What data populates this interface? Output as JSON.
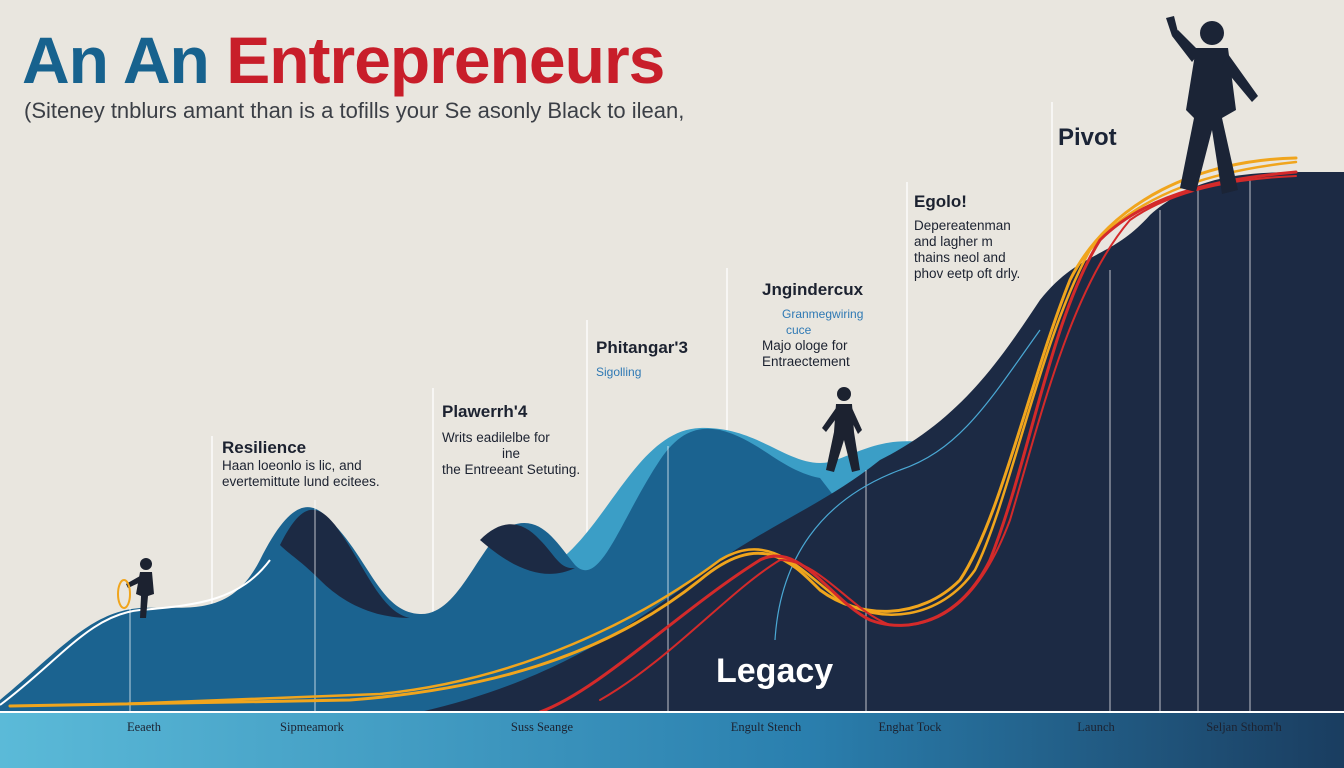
{
  "title": {
    "part1": "An An",
    "part2": "Entrepreneurs"
  },
  "subtitle": "(Siteney tnblurs amant than is a tofills your Se asonly Black to ilean,",
  "annotations": {
    "resilience": {
      "heading": "Resilience",
      "lines": [
        "Haan loeonlo is lic, and",
        "evertemittute lund ecitees."
      ]
    },
    "plawerrh": {
      "heading": "Plawerrh'4",
      "lines": [
        "Writs eadilelbe for",
        "the Entreeant Setuting."
      ],
      "blue": "ine"
    },
    "phitangar": {
      "heading": "Phitangar'3",
      "blue": "Sigolling"
    },
    "jngindercux": {
      "heading": "Jngindercux",
      "blue": [
        "Granmegwiring",
        "cuce"
      ],
      "lines": [
        "Majo ologe for",
        "Entraectement"
      ]
    },
    "egolo": {
      "heading": "Egolo!",
      "lines": [
        "Depereatenman",
        "and lagher m",
        "thains neol and",
        "phov eetp oft drly."
      ]
    }
  },
  "pivot_label": "Pivot",
  "legacy_label": "Legacy",
  "x_axis_labels": [
    "Eeaeth",
    "Sipmeamork",
    "Suss Seange",
    "Engult Stench",
    "Enghat Tock",
    "Launch",
    "Seljan Sthom'h"
  ],
  "colors": {
    "title_blue": "#17628e",
    "title_red": "#c81e2a",
    "navy": "#1c2a44",
    "teal": "#3a9fc7",
    "gold": "#f0a51d",
    "red": "#d42a2a"
  }
}
